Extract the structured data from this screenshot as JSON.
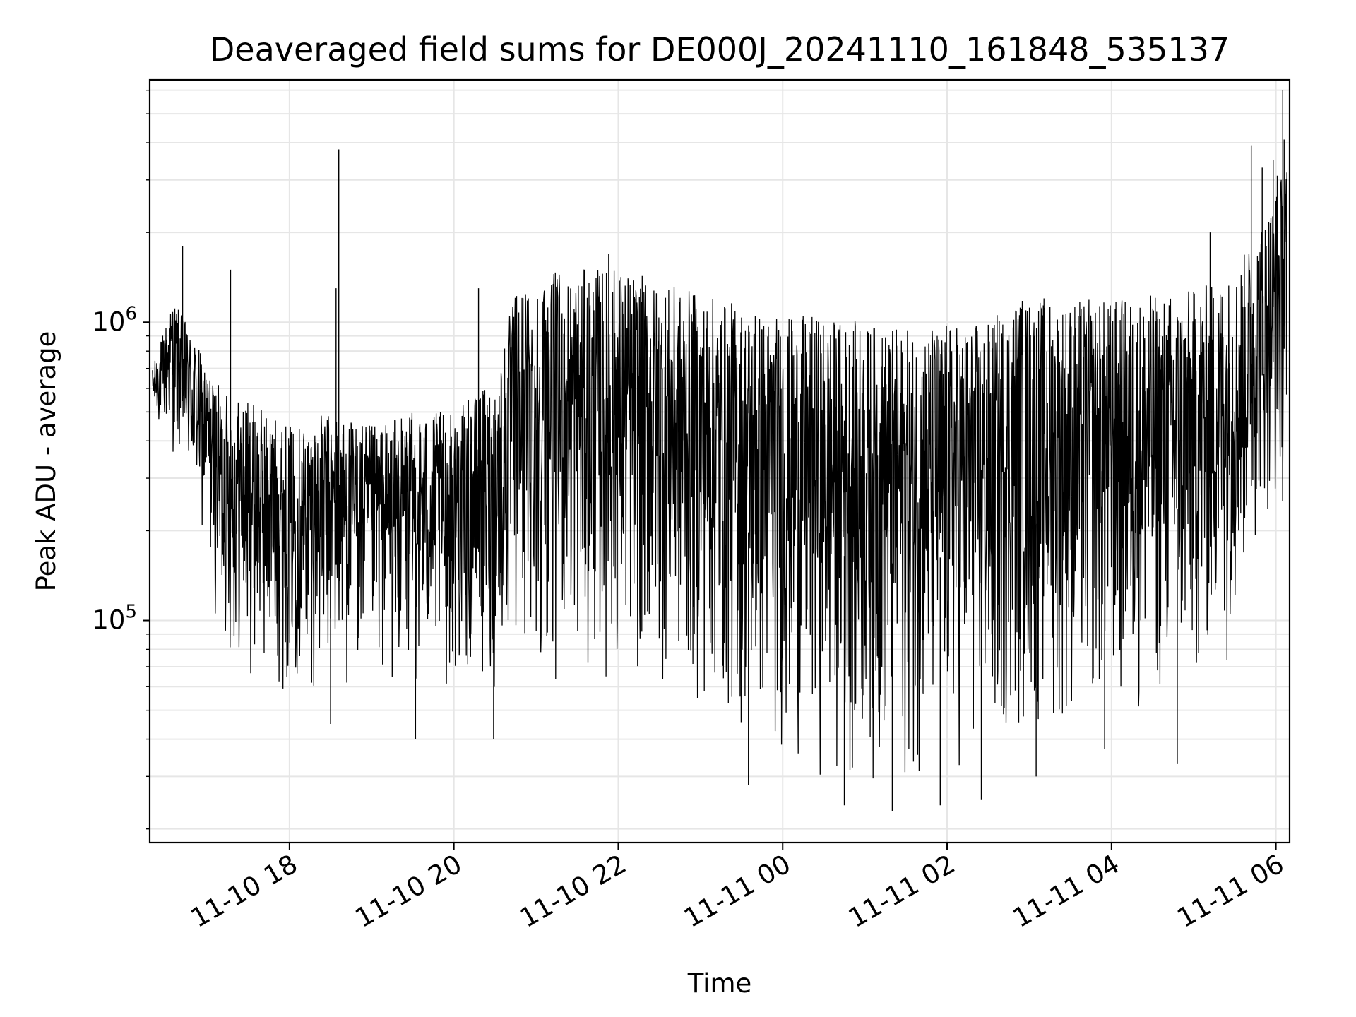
{
  "chart_data": {
    "type": "line",
    "title": "Deaveraged field sums for DE000J_20241110_161848_535137",
    "xlabel": "Time",
    "ylabel": "Peak ADU - average",
    "yscale": "log",
    "ylim": [
      18000,
      6500000
    ],
    "xlim": [
      "2024-11-10 16:18",
      "2024-11-11 06:10"
    ],
    "grid": true,
    "line_color": "#000000",
    "grid_color": "#e6e6e6",
    "x_ticks": [
      {
        "t": "2024-11-10 18:00",
        "label": "11-10 18"
      },
      {
        "t": "2024-11-10 20:00",
        "label": "11-10 20"
      },
      {
        "t": "2024-11-10 22:00",
        "label": "11-10 22"
      },
      {
        "t": "2024-11-11 00:00",
        "label": "11-11 00"
      },
      {
        "t": "2024-11-11 02:00",
        "label": "11-11 02"
      },
      {
        "t": "2024-11-11 04:00",
        "label": "11-11 04"
      },
      {
        "t": "2024-11-11 06:00",
        "label": "11-11 06"
      }
    ],
    "y_ticks": [
      {
        "value": 100000,
        "base": "10",
        "exp": "5"
      },
      {
        "value": 1000000,
        "base": "10",
        "exp": "6"
      }
    ],
    "series": [
      {
        "band": [
          {
            "t": "2024-11-10 16:20",
            "low": 450000,
            "high": 700000
          },
          {
            "t": "2024-11-10 16:35",
            "low": 350000,
            "high": 1200000
          },
          {
            "t": "2024-11-10 16:50",
            "low": 220000,
            "high": 900000
          },
          {
            "t": "2024-11-10 17:00",
            "low": 150000,
            "high": 700000
          },
          {
            "t": "2024-11-10 17:10",
            "low": 70000,
            "high": 600000
          },
          {
            "t": "2024-11-10 17:30",
            "low": 60000,
            "high": 550000
          },
          {
            "t": "2024-11-10 18:00",
            "low": 55000,
            "high": 450000
          },
          {
            "t": "2024-11-10 18:30",
            "low": 55000,
            "high": 500000
          },
          {
            "t": "2024-11-10 19:00",
            "low": 55000,
            "high": 450000
          },
          {
            "t": "2024-11-10 19:30",
            "low": 55000,
            "high": 500000
          },
          {
            "t": "2024-11-10 20:00",
            "low": 55000,
            "high": 500000
          },
          {
            "t": "2024-11-10 20:30",
            "low": 50000,
            "high": 650000
          },
          {
            "t": "2024-11-10 20:45",
            "low": 60000,
            "high": 1300000
          },
          {
            "t": "2024-11-10 21:00",
            "low": 60000,
            "high": 1450000
          },
          {
            "t": "2024-11-10 21:30",
            "low": 60000,
            "high": 1500000
          },
          {
            "t": "2024-11-10 22:00",
            "low": 55000,
            "high": 1550000
          },
          {
            "t": "2024-11-10 22:30",
            "low": 55000,
            "high": 1350000
          },
          {
            "t": "2024-11-10 23:00",
            "low": 45000,
            "high": 1250000
          },
          {
            "t": "2024-11-10 23:30",
            "low": 35000,
            "high": 1150000
          },
          {
            "t": "2024-11-11 00:00",
            "low": 32000,
            "high": 1050000
          },
          {
            "t": "2024-11-11 00:30",
            "low": 28000,
            "high": 1050000
          },
          {
            "t": "2024-11-11 01:00",
            "low": 25000,
            "high": 1000000
          },
          {
            "t": "2024-11-11 01:30",
            "low": 25000,
            "high": 950000
          },
          {
            "t": "2024-11-11 02:00",
            "low": 27000,
            "high": 1000000
          },
          {
            "t": "2024-11-11 02:30",
            "low": 28000,
            "high": 1000000
          },
          {
            "t": "2024-11-11 02:50",
            "low": 35000,
            "high": 1250000
          },
          {
            "t": "2024-11-11 03:30",
            "low": 38000,
            "high": 1200000
          },
          {
            "t": "2024-11-11 04:00",
            "low": 40000,
            "high": 1200000
          },
          {
            "t": "2024-11-11 04:30",
            "low": 42000,
            "high": 1250000
          },
          {
            "t": "2024-11-11 05:00",
            "low": 45000,
            "high": 1300000
          },
          {
            "t": "2024-11-11 05:30",
            "low": 80000,
            "high": 1500000
          },
          {
            "t": "2024-11-11 05:50",
            "low": 200000,
            "high": 2200000
          },
          {
            "t": "2024-11-11 06:08",
            "low": 200000,
            "high": 3500000
          }
        ],
        "spikes": [
          {
            "t": "2024-11-10 16:42",
            "value": 1800000
          },
          {
            "t": "2024-11-10 17:17",
            "value": 1500000
          },
          {
            "t": "2024-11-10 18:36",
            "value": 3800000
          },
          {
            "t": "2024-11-10 18:34",
            "value": 1300000
          },
          {
            "t": "2024-11-10 20:18",
            "value": 1300000
          },
          {
            "t": "2024-11-10 21:53",
            "value": 1700000
          },
          {
            "t": "2024-11-10 23:40",
            "value": 1050000
          },
          {
            "t": "2024-11-11 05:12",
            "value": 2000000
          },
          {
            "t": "2024-11-11 05:42",
            "value": 3900000
          },
          {
            "t": "2024-11-11 05:50",
            "value": 3300000
          },
          {
            "t": "2024-11-11 05:58",
            "value": 3500000
          },
          {
            "t": "2024-11-11 06:01",
            "value": 3100000
          },
          {
            "t": "2024-11-11 06:05",
            "value": 6000000
          },
          {
            "t": "2024-11-11 06:06",
            "value": 4100000
          },
          {
            "t": "2024-11-10 18:30",
            "value": 45000
          },
          {
            "t": "2024-11-10 19:32",
            "value": 40000
          },
          {
            "t": "2024-11-10 20:29",
            "value": 40000
          },
          {
            "t": "2024-11-10 23:35",
            "value": 28000
          },
          {
            "t": "2024-11-11 00:45",
            "value": 24000
          },
          {
            "t": "2024-11-11 01:20",
            "value": 23000
          },
          {
            "t": "2024-11-11 01:55",
            "value": 24000
          },
          {
            "t": "2024-11-11 02:25",
            "value": 25000
          },
          {
            "t": "2024-11-11 03:05",
            "value": 30000
          },
          {
            "t": "2024-11-11 03:55",
            "value": 37000
          },
          {
            "t": "2024-11-11 04:48",
            "value": 33000
          }
        ]
      }
    ]
  }
}
